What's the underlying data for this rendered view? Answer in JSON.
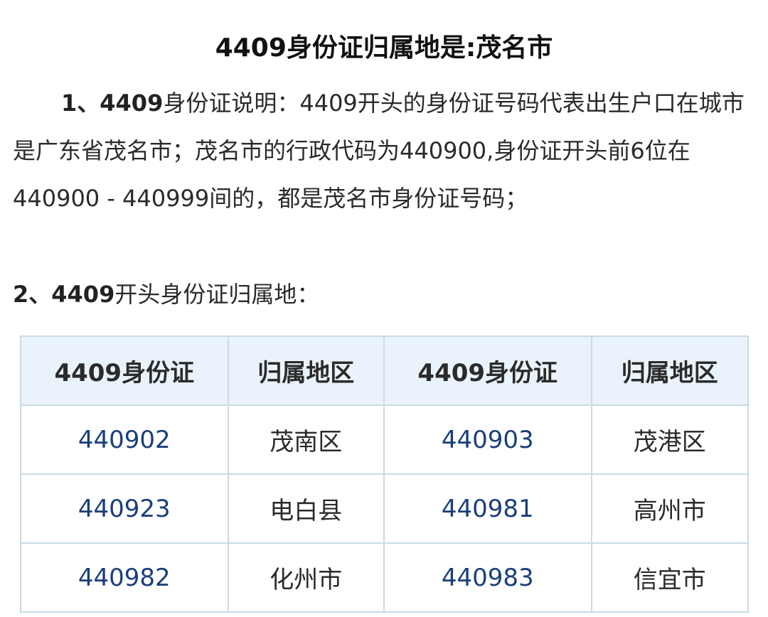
{
  "title": "4409身份证归属地是:茂名市",
  "section1": {
    "label": "1、4409",
    "text": "身份证说明：4409开头的身份证号码代表出生户口在城市是广东省茂名市；茂名市的行政代码为440900,身份证开头前6位在440900 - 440999间的，都是茂名市身份证号码；"
  },
  "section2": {
    "label": "2、4409",
    "text": "开头身份证归属地："
  },
  "table": {
    "headers": [
      "4409身份证",
      "归属地区",
      "4409身份证",
      "归属地区"
    ],
    "rows": [
      [
        "440902",
        "茂南区",
        "440903",
        "茂港区"
      ],
      [
        "440923",
        "电白县",
        "440981",
        "高州市"
      ],
      [
        "440982",
        "化州市",
        "440983",
        "信宜市"
      ]
    ]
  },
  "colors": {
    "header_bg": "#eaf3fb",
    "border": "#c8dbe5",
    "code_text": "#1a3f7a"
  }
}
